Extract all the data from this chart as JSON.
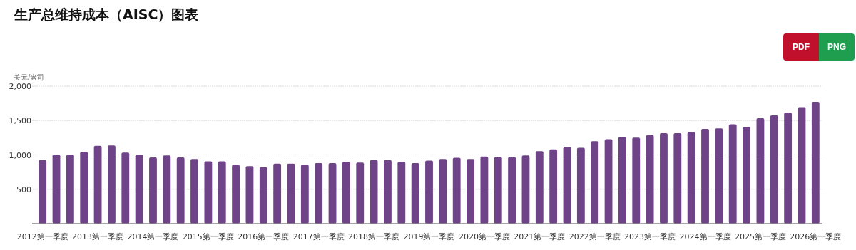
{
  "chart_data": {
    "type": "bar",
    "title": "生产总维持成本（AISC）图表",
    "ylabel": "美元/盎司",
    "annotations": [
      "PDF",
      "PNG"
    ],
    "categories": [
      "2012第一季度",
      null,
      null,
      null,
      "2013第一季度",
      null,
      null,
      null,
      "2014第一季度",
      null,
      null,
      null,
      "2015第一季度",
      null,
      null,
      null,
      "2016第一季度",
      null,
      null,
      null,
      "2017第一季度",
      null,
      null,
      null,
      "2018第一季度",
      null,
      null,
      null,
      "2019第一季度",
      null,
      null,
      null,
      "2020第一季度",
      null,
      null,
      null,
      "2021第一季度",
      null,
      null,
      null,
      "2022第一季度",
      null,
      null,
      null,
      "2023第一季度",
      null,
      null,
      null,
      "2024第一季度",
      null,
      null,
      null,
      "2025第一季度",
      null,
      null,
      null,
      "2026第一季度"
    ],
    "values": [
      924,
      1003,
      1003,
      1045,
      1131,
      1138,
      1034,
      1003,
      965,
      993,
      965,
      941,
      906,
      906,
      855,
      837,
      820,
      872,
      872,
      855,
      882,
      882,
      900,
      889,
      924,
      924,
      900,
      882,
      917,
      941,
      958,
      941,
      976,
      969,
      969,
      993,
      1055,
      1080,
      1114,
      1104,
      1200,
      1228,
      1263,
      1252,
      1287,
      1315,
      1315,
      1332,
      1377,
      1387,
      1446,
      1408,
      1533,
      1574,
      1616,
      1695,
      1772
    ],
    "color": "#6f4387",
    "ylim": [
      0,
      2000
    ],
    "yticks": [
      {
        "value": 0,
        "label": null
      },
      500,
      {
        "value": 1000,
        "label": "1,000"
      },
      {
        "value": 1500,
        "label": "1,500"
      },
      {
        "value": 2000,
        "label": "2,000"
      }
    ],
    "grid": "y"
  }
}
